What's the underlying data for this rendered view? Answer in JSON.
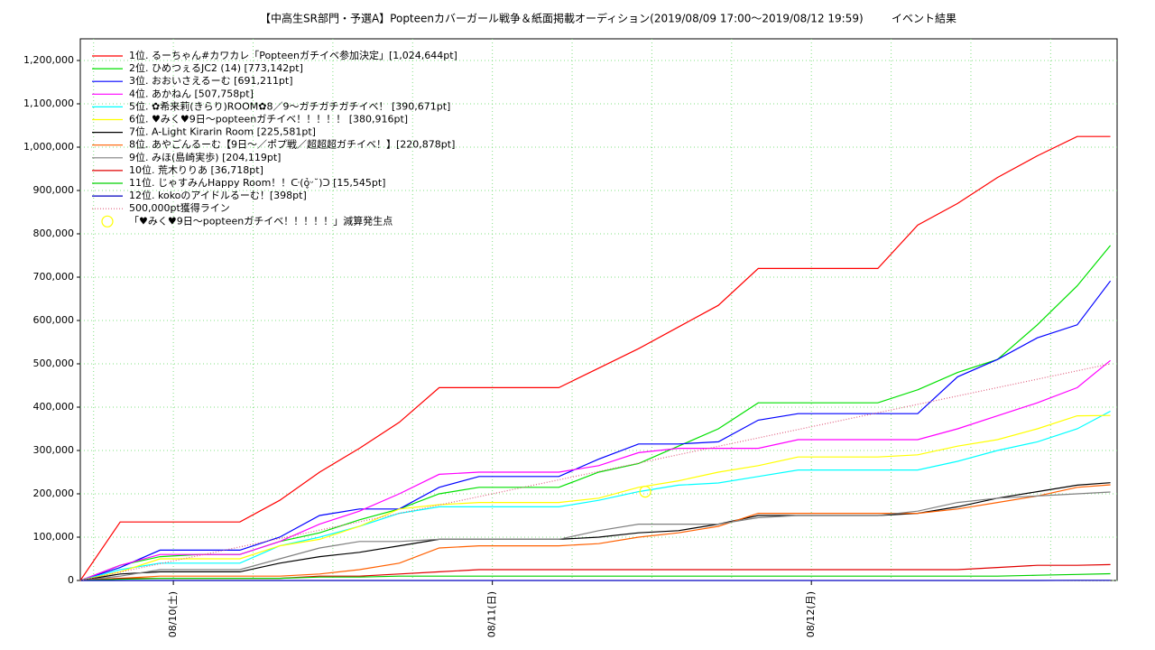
{
  "chart_data": {
    "type": "line",
    "title": "【中高生SR部門・予選A】Popteenカバーガール戦争＆紙面掲載オーディション(2019/08/09 17:00～2019/08/12 19:59)",
    "subtitle": "イベント結果",
    "x": [
      0,
      3,
      6,
      9,
      12,
      15,
      18,
      21,
      24,
      27,
      30,
      33,
      36,
      39,
      42,
      45,
      48,
      51,
      54,
      57,
      60,
      63,
      66,
      69,
      72,
      75,
      77.5
    ],
    "xlim": [
      0,
      78
    ],
    "xticks": [
      {
        "value": 7,
        "label": "08/10(土)"
      },
      {
        "value": 31,
        "label": "08/11(日)"
      },
      {
        "value": 55,
        "label": "08/12(月)"
      }
    ],
    "xgrid_minor": [
      1,
      13,
      19,
      25,
      37,
      43,
      49,
      61,
      67,
      73
    ],
    "ylim": [
      0,
      1250000
    ],
    "yticks": [
      0,
      {
        "value": 100000,
        "label": "100,000"
      },
      {
        "value": 200000,
        "label": "200,000"
      },
      {
        "value": 300000,
        "label": "300,000"
      },
      {
        "value": 400000,
        "label": "400,000"
      },
      {
        "value": 500000,
        "label": "500,000"
      },
      {
        "value": 600000,
        "label": "600,000"
      },
      {
        "value": 700000,
        "label": "700,000"
      },
      {
        "value": 800000,
        "label": "800,000"
      },
      {
        "value": 900000,
        "label": "900,000"
      },
      {
        "value": 1000000,
        "label": "1,000,000"
      },
      {
        "value": 1100000,
        "label": "1,100,000"
      },
      {
        "value": 1200000,
        "label": "1,200,000"
      }
    ],
    "grid": true,
    "legend": "top-left",
    "series": [
      {
        "name": "1位. るーちゃん#カワカレ「Popteenガチイベ参加決定」[1,024,644pt]",
        "color": "#ff0000",
        "values": [
          0,
          135000,
          135000,
          135000,
          135000,
          185000,
          250000,
          305000,
          365000,
          445000,
          445000,
          445000,
          445000,
          490000,
          535000,
          585000,
          635000,
          720000,
          720000,
          720000,
          720000,
          820000,
          870000,
          930000,
          980000,
          1024644,
          1024644
        ]
      },
      {
        "name": "2位. ひめつぇるJC2 (14) [773,142pt]",
        "color": "#00e000",
        "values": [
          0,
          35000,
          55000,
          60000,
          60000,
          90000,
          110000,
          140000,
          165000,
          200000,
          215000,
          215000,
          215000,
          250000,
          270000,
          310000,
          350000,
          410000,
          410000,
          410000,
          410000,
          440000,
          480000,
          510000,
          590000,
          680000,
          773142
        ]
      },
      {
        "name": "3位. おおいさえるーむ [691,211pt]",
        "color": "#0000ff",
        "values": [
          0,
          30000,
          70000,
          70000,
          70000,
          100000,
          150000,
          165000,
          165000,
          215000,
          240000,
          240000,
          240000,
          280000,
          315000,
          315000,
          320000,
          370000,
          385000,
          385000,
          385000,
          385000,
          470000,
          510000,
          560000,
          590000,
          691211
        ]
      },
      {
        "name": "4位. あかねん [507,758pt]",
        "color": "#ff00ff",
        "values": [
          0,
          35000,
          60000,
          60000,
          60000,
          90000,
          130000,
          160000,
          200000,
          245000,
          250000,
          250000,
          250000,
          265000,
          295000,
          305000,
          305000,
          305000,
          325000,
          325000,
          325000,
          325000,
          350000,
          380000,
          410000,
          445000,
          507758
        ]
      },
      {
        "name": "5位. ✿希来莉(きらり)ROOM✿8／9～ガチガチガチイベ！ [390,671pt]",
        "color": "#00ffff",
        "values": [
          0,
          25000,
          40000,
          40000,
          40000,
          80000,
          100000,
          125000,
          155000,
          170000,
          170000,
          170000,
          170000,
          185000,
          205000,
          220000,
          225000,
          240000,
          255000,
          255000,
          255000,
          255000,
          275000,
          300000,
          320000,
          350000,
          390671
        ]
      },
      {
        "name": "6位. ♥みく♥9日～popteenガチイベ！！！！！ [380,916pt]",
        "color": "#ffff00",
        "values": [
          0,
          20000,
          50000,
          50000,
          50000,
          80000,
          95000,
          125000,
          165000,
          175000,
          180000,
          180000,
          180000,
          190000,
          215000,
          230000,
          250000,
          265000,
          285000,
          285000,
          285000,
          290000,
          310000,
          325000,
          350000,
          380000,
          380916
        ]
      },
      {
        "name": "7位. A-Light Kirarin Room [225,581pt]",
        "color": "#000000",
        "values": [
          0,
          15000,
          20000,
          20000,
          20000,
          40000,
          55000,
          65000,
          80000,
          95000,
          95000,
          95000,
          95000,
          100000,
          110000,
          115000,
          130000,
          150000,
          150000,
          150000,
          150000,
          155000,
          170000,
          190000,
          205000,
          220000,
          225581
        ]
      },
      {
        "name": "8位. あやごんるーむ【9日～／ポプ戦／超超超ガチイベ！】[220,878pt]",
        "color": "#ff6000",
        "values": [
          0,
          5000,
          10000,
          10000,
          10000,
          10000,
          15000,
          25000,
          40000,
          75000,
          80000,
          80000,
          80000,
          85000,
          100000,
          110000,
          125000,
          155000,
          155000,
          155000,
          155000,
          155000,
          165000,
          180000,
          195000,
          215000,
          220878
        ]
      },
      {
        "name": "9位. みほ(島崎実歩) [204,119pt]",
        "color": "#808080",
        "values": [
          0,
          10000,
          25000,
          25000,
          25000,
          50000,
          75000,
          90000,
          90000,
          95000,
          95000,
          95000,
          95000,
          115000,
          130000,
          130000,
          130000,
          145000,
          150000,
          150000,
          150000,
          160000,
          180000,
          190000,
          195000,
          200000,
          204119
        ]
      },
      {
        "name": "10位. 荒木りりあ [36,718pt]",
        "color": "#e00000",
        "values": [
          0,
          5000,
          5000,
          5000,
          5000,
          5000,
          10000,
          10000,
          15000,
          20000,
          25000,
          25000,
          25000,
          25000,
          25000,
          25000,
          25000,
          25000,
          25000,
          25000,
          25000,
          25000,
          25000,
          30000,
          35000,
          35000,
          36718
        ]
      },
      {
        "name": "11位. じゃすみんHappy Room！！ᑢ(ỏ̥ᵕ˘)ᑐ [15,545pt]",
        "color": "#00d000",
        "values": [
          0,
          3000,
          5000,
          5000,
          5000,
          5000,
          8000,
          8000,
          10000,
          10000,
          10000,
          10000,
          10000,
          10000,
          10000,
          10000,
          10000,
          10000,
          10000,
          10000,
          10000,
          10000,
          10000,
          10000,
          12000,
          14000,
          15545
        ]
      },
      {
        "name": "12位. kokoのアイドルるーむ！[398pt]",
        "color": "#0000c0",
        "values": [
          0,
          0,
          0,
          0,
          0,
          0,
          0,
          0,
          0,
          0,
          0,
          0,
          0,
          0,
          0,
          0,
          0,
          0,
          0,
          0,
          0,
          0,
          0,
          0,
          0,
          398,
          398
        ]
      },
      {
        "name": "500,000pt獲得ライン",
        "color": "#e06080",
        "style": "dotted",
        "x": [
          0,
          77.5
        ],
        "values": [
          0,
          500000
        ]
      },
      {
        "name": "「♥みく♥9日～popteenガチイベ！！！！！」減算発生点",
        "color": "#ffff00",
        "style": "circle",
        "x": [
          42.5
        ],
        "values": [
          205000
        ]
      }
    ]
  }
}
